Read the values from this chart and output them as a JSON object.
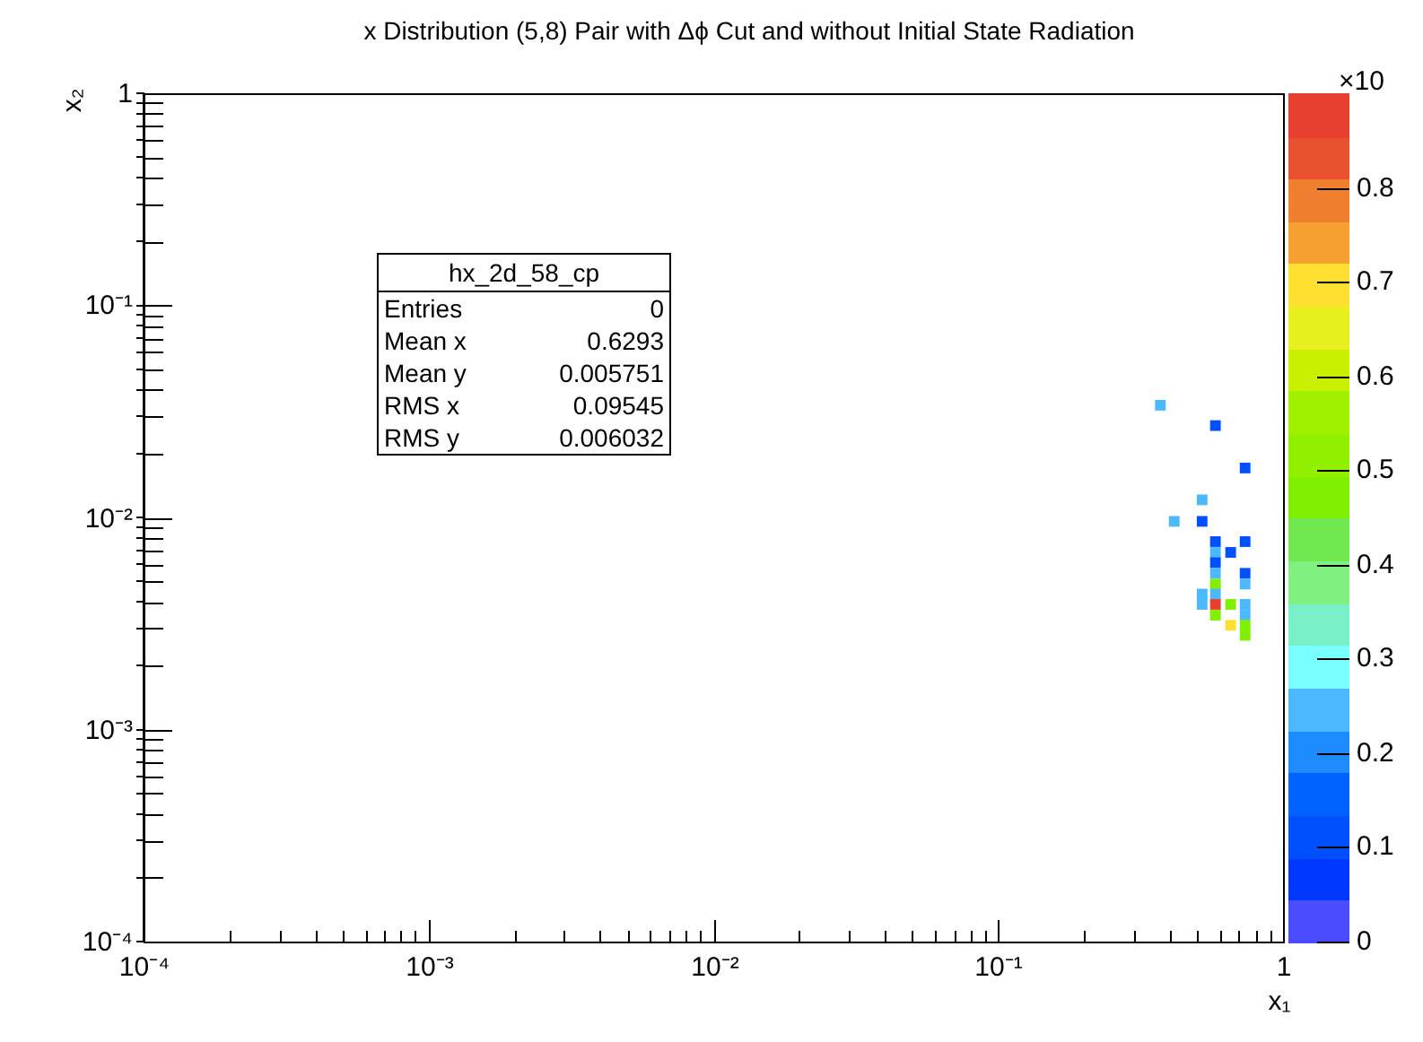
{
  "chart_data": {
    "type": "scatter",
    "title": "x Distribution (5,8) Pair with Δϕ Cut and without Initial State Radiation",
    "xlabel": "x₁",
    "ylabel": "x₂",
    "clabel": "×10",
    "log": "xy",
    "legend": false,
    "marker": "square",
    "xlim": [
      0.0001,
      1
    ],
    "ylim": [
      0.0001,
      1
    ],
    "clim": [
      0,
      0.9
    ],
    "xticks": [
      {
        "value": 0.0001,
        "label": "10⁻⁴"
      },
      {
        "value": 0.0002,
        "label": null
      },
      {
        "value": 0.0003,
        "label": null
      },
      {
        "value": 0.0004,
        "label": null
      },
      {
        "value": 0.0005,
        "label": null
      },
      {
        "value": 0.0006,
        "label": null
      },
      {
        "value": 0.0007,
        "label": null
      },
      {
        "value": 0.0008,
        "label": null
      },
      {
        "value": 0.0009,
        "label": null
      },
      {
        "value": 0.001,
        "label": "10⁻³"
      },
      {
        "value": 0.002,
        "label": null
      },
      {
        "value": 0.003,
        "label": null
      },
      {
        "value": 0.004,
        "label": null
      },
      {
        "value": 0.005,
        "label": null
      },
      {
        "value": 0.006,
        "label": null
      },
      {
        "value": 0.007,
        "label": null
      },
      {
        "value": 0.008,
        "label": null
      },
      {
        "value": 0.009,
        "label": null
      },
      {
        "value": 0.01,
        "label": "10⁻²"
      },
      {
        "value": 0.02,
        "label": null
      },
      {
        "value": 0.03,
        "label": null
      },
      {
        "value": 0.04,
        "label": null
      },
      {
        "value": 0.05,
        "label": null
      },
      {
        "value": 0.06,
        "label": null
      },
      {
        "value": 0.07,
        "label": null
      },
      {
        "value": 0.08,
        "label": null
      },
      {
        "value": 0.09,
        "label": null
      },
      {
        "value": 0.1,
        "label": "10⁻¹"
      },
      {
        "value": 0.2,
        "label": null
      },
      {
        "value": 0.3,
        "label": null
      },
      {
        "value": 0.4,
        "label": null
      },
      {
        "value": 0.5,
        "label": null
      },
      {
        "value": 0.6,
        "label": null
      },
      {
        "value": 0.7,
        "label": null
      },
      {
        "value": 0.8,
        "label": null
      },
      {
        "value": 0.9,
        "label": null
      },
      1
    ],
    "yticks": [
      {
        "value": 0.0001,
        "label": "10⁻⁴"
      },
      {
        "value": 0.0002,
        "label": null
      },
      {
        "value": 0.0003,
        "label": null
      },
      {
        "value": 0.0004,
        "label": null
      },
      {
        "value": 0.0005,
        "label": null
      },
      {
        "value": 0.0006,
        "label": null
      },
      {
        "value": 0.0007,
        "label": null
      },
      {
        "value": 0.0008,
        "label": null
      },
      {
        "value": 0.0009,
        "label": null
      },
      {
        "value": 0.001,
        "label": "10⁻³"
      },
      {
        "value": 0.002,
        "label": null
      },
      {
        "value": 0.003,
        "label": null
      },
      {
        "value": 0.004,
        "label": null
      },
      {
        "value": 0.005,
        "label": null
      },
      {
        "value": 0.006,
        "label": null
      },
      {
        "value": 0.007,
        "label": null
      },
      {
        "value": 0.008,
        "label": null
      },
      {
        "value": 0.009,
        "label": null
      },
      {
        "value": 0.01,
        "label": "10⁻²"
      },
      {
        "value": 0.02,
        "label": null
      },
      {
        "value": 0.03,
        "label": null
      },
      {
        "value": 0.04,
        "label": null
      },
      {
        "value": 0.05,
        "label": null
      },
      {
        "value": 0.06,
        "label": null
      },
      {
        "value": 0.07,
        "label": null
      },
      {
        "value": 0.08,
        "label": null
      },
      {
        "value": 0.09,
        "label": null
      },
      {
        "value": 0.1,
        "label": "10⁻¹"
      },
      {
        "value": 0.2,
        "label": null
      },
      {
        "value": 0.3,
        "label": null
      },
      {
        "value": 0.4,
        "label": null
      },
      {
        "value": 0.5,
        "label": null
      },
      {
        "value": 0.6,
        "label": null
      },
      {
        "value": 0.7,
        "label": null
      },
      {
        "value": 0.8,
        "label": null
      },
      {
        "value": 0.9,
        "label": null
      },
      1
    ],
    "cticks": [
      {
        "value": 0,
        "label": "0"
      },
      {
        "value": 0.1,
        "label": "0.1"
      },
      {
        "value": 0.2,
        "label": "0.2"
      },
      {
        "value": 0.3,
        "label": "0.3"
      },
      {
        "value": 0.4,
        "label": "0.4"
      },
      {
        "value": 0.5,
        "label": "0.5"
      },
      {
        "value": 0.6,
        "label": "0.6"
      },
      {
        "value": 0.7,
        "label": "0.7"
      },
      {
        "value": 0.8,
        "label": "0.8"
      }
    ],
    "x": [
      0.371,
      0.579,
      0.736,
      0.52,
      0.415,
      0.52,
      0.579,
      0.736,
      0.579,
      0.655,
      0.579,
      0.579,
      0.736,
      0.579,
      0.736,
      0.52,
      0.579,
      0.52,
      0.579,
      0.655,
      0.736,
      0.579,
      0.736,
      0.655,
      0.736,
      0.736
    ],
    "values": [
      0.0338,
      0.0271,
      0.0171,
      0.0121,
      0.00958,
      0.00958,
      0.00769,
      0.00769,
      0.00684,
      0.00684,
      0.00612,
      0.00545,
      0.00545,
      0.00485,
      0.00485,
      0.00435,
      0.00435,
      0.00389,
      0.00389,
      0.00389,
      0.00389,
      0.00346,
      0.00346,
      0.0031,
      0.0031,
      0.00278
    ],
    "cvalues": [
      0.25,
      0.11,
      0.11,
      0.25,
      0.25,
      0.11,
      0.11,
      0.11,
      0.25,
      0.11,
      0.11,
      0.25,
      0.11,
      0.47,
      0.25,
      0.25,
      0.25,
      0.25,
      0.87,
      0.47,
      0.25,
      0.47,
      0.25,
      0.7,
      0.47,
      0.47
    ],
    "annotations": [
      "hx_2d_58_cp",
      "Entries\t0",
      "Mean x\t0.6293",
      "Mean y\t0.005751",
      "RMS x\t0.09545",
      "RMS y\t0.006032"
    ]
  }
}
